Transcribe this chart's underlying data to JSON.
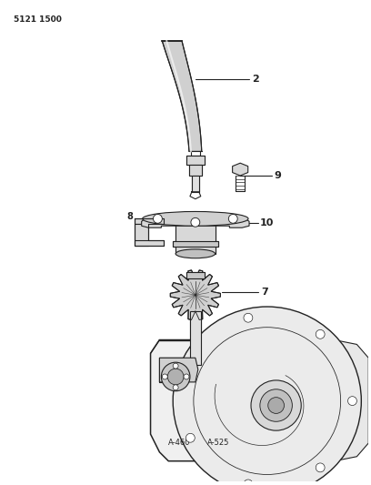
{
  "page_number": "5121 1500",
  "background_color": "#ffffff",
  "line_color": "#222222",
  "fig_width": 4.08,
  "fig_height": 5.33,
  "dpi": 100,
  "cable_color": "#cccccc",
  "part_fill": "#e0e0e0",
  "housing_fill": "#eeeeee"
}
